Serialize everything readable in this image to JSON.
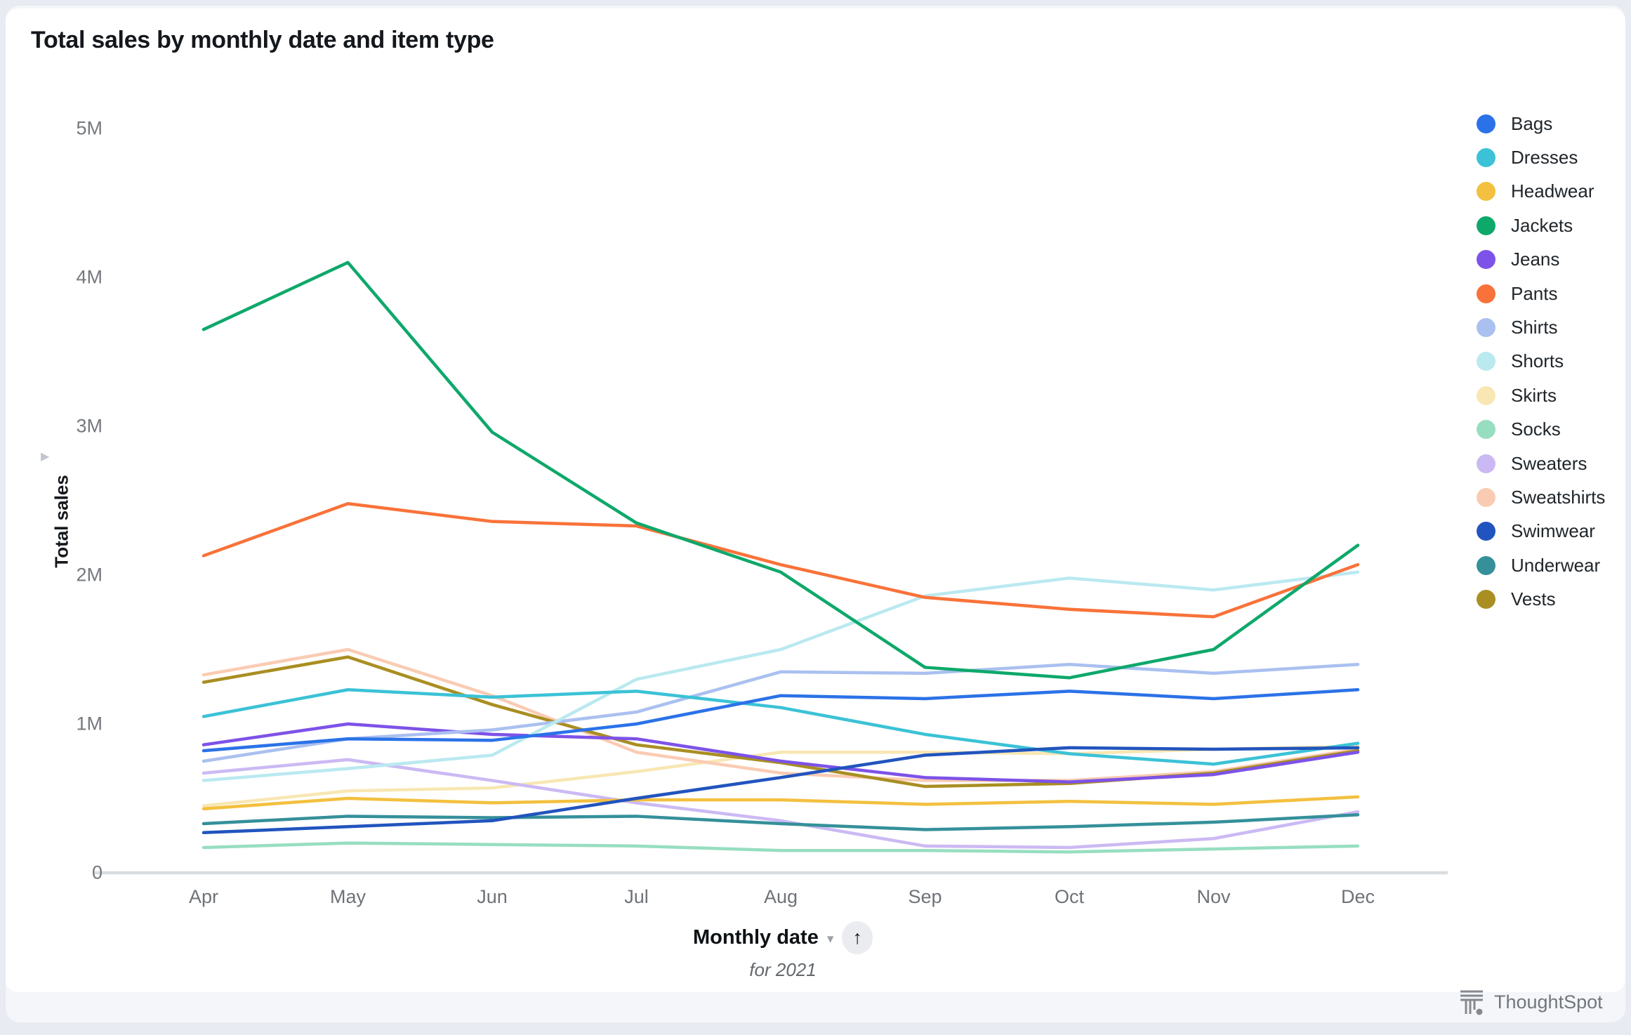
{
  "header": {
    "title": "Total sales by monthly date and item type"
  },
  "y_axis": {
    "title": "Total sales",
    "ticks": [
      "5M",
      "4M",
      "3M",
      "2M",
      "1M",
      "0"
    ],
    "tick_values": [
      5,
      4,
      3,
      2,
      1,
      0
    ]
  },
  "x_axis": {
    "label": "Monthly date",
    "sublabel": "for 2021",
    "caret_icon": "▾",
    "sort_icon": "↑"
  },
  "footer": {
    "brand": "ThoughtSpot"
  },
  "colors": {
    "page_bg": "#E8EBF1",
    "panel_bg": "#F4F6FA",
    "card_bg": "#FFFFFF",
    "axis_line": "#D9DCE1",
    "tick_text": "#75797E",
    "month_text": "#6E7378",
    "title_text": "#14181C",
    "legend_text": "#20262B",
    "footer_text": "#72777C",
    "axis_marker": "#C2C7CD"
  },
  "chart_data": {
    "type": "line",
    "title": "Total sales by monthly date and item type",
    "xlabel": "Monthly date",
    "ylabel": "Total sales",
    "x": [
      "Apr",
      "May",
      "Jun",
      "Jul",
      "Aug",
      "Sep",
      "Oct",
      "Nov",
      "Dec"
    ],
    "year": "2021",
    "y_unit": "millions",
    "ylim": [
      0,
      5000000
    ],
    "grid": false,
    "legend_position": "right",
    "series": [
      {
        "name": "Bags",
        "color": "#2B72E8",
        "values_millions": [
          0.82,
          0.9,
          0.89,
          1.0,
          1.19,
          1.17,
          1.22,
          1.17,
          1.23
        ]
      },
      {
        "name": "Dresses",
        "color": "#3BC2D6",
        "values_millions": [
          1.05,
          1.23,
          1.18,
          1.22,
          1.11,
          0.93,
          0.8,
          0.73,
          0.87
        ]
      },
      {
        "name": "Headwear",
        "color": "#F3C03F",
        "values_millions": [
          0.43,
          0.5,
          0.47,
          0.49,
          0.49,
          0.46,
          0.48,
          0.46,
          0.51
        ]
      },
      {
        "name": "Jackets",
        "color": "#0EA86B",
        "values_millions": [
          3.65,
          4.1,
          2.96,
          2.35,
          2.02,
          1.38,
          1.31,
          1.5,
          2.2
        ]
      },
      {
        "name": "Jeans",
        "color": "#7D52E8",
        "values_millions": [
          0.86,
          1.0,
          0.93,
          0.9,
          0.75,
          0.64,
          0.61,
          0.66,
          0.81
        ]
      },
      {
        "name": "Pants",
        "color": "#F97239",
        "values_millions": [
          2.13,
          2.48,
          2.36,
          2.33,
          2.07,
          1.85,
          1.77,
          1.72,
          2.07
        ]
      },
      {
        "name": "Shirts",
        "color": "#AAC0F0",
        "values_millions": [
          0.75,
          0.9,
          0.96,
          1.08,
          1.35,
          1.34,
          1.4,
          1.34,
          1.4
        ]
      },
      {
        "name": "Shorts",
        "color": "#BAE9F0",
        "values_millions": [
          0.62,
          0.7,
          0.79,
          1.3,
          1.5,
          1.86,
          1.98,
          1.9,
          2.02
        ]
      },
      {
        "name": "Skirts",
        "color": "#F8E7B3",
        "values_millions": [
          0.45,
          0.55,
          0.57,
          0.68,
          0.81,
          0.81,
          0.8,
          0.83,
          0.85
        ]
      },
      {
        "name": "Socks",
        "color": "#97DEC1",
        "values_millions": [
          0.17,
          0.2,
          0.19,
          0.18,
          0.15,
          0.15,
          0.14,
          0.16,
          0.18
        ]
      },
      {
        "name": "Sweaters",
        "color": "#CBB9F3",
        "values_millions": [
          0.67,
          0.76,
          0.62,
          0.47,
          0.35,
          0.18,
          0.17,
          0.23,
          0.41
        ]
      },
      {
        "name": "Sweatshirts",
        "color": "#FACBB3",
        "values_millions": [
          1.33,
          1.5,
          1.19,
          0.81,
          0.67,
          0.62,
          0.62,
          0.68,
          0.83
        ]
      },
      {
        "name": "Swimwear",
        "color": "#2154BE",
        "values_millions": [
          0.27,
          0.31,
          0.35,
          0.5,
          0.64,
          0.79,
          0.84,
          0.83,
          0.84
        ]
      },
      {
        "name": "Underwear",
        "color": "#35909A",
        "values_millions": [
          0.33,
          0.38,
          0.37,
          0.38,
          0.33,
          0.29,
          0.31,
          0.34,
          0.39
        ]
      },
      {
        "name": "Vests",
        "color": "#A98E22",
        "values_millions": [
          1.28,
          1.45,
          1.13,
          0.86,
          0.74,
          0.58,
          0.6,
          0.67,
          0.82
        ]
      }
    ]
  }
}
